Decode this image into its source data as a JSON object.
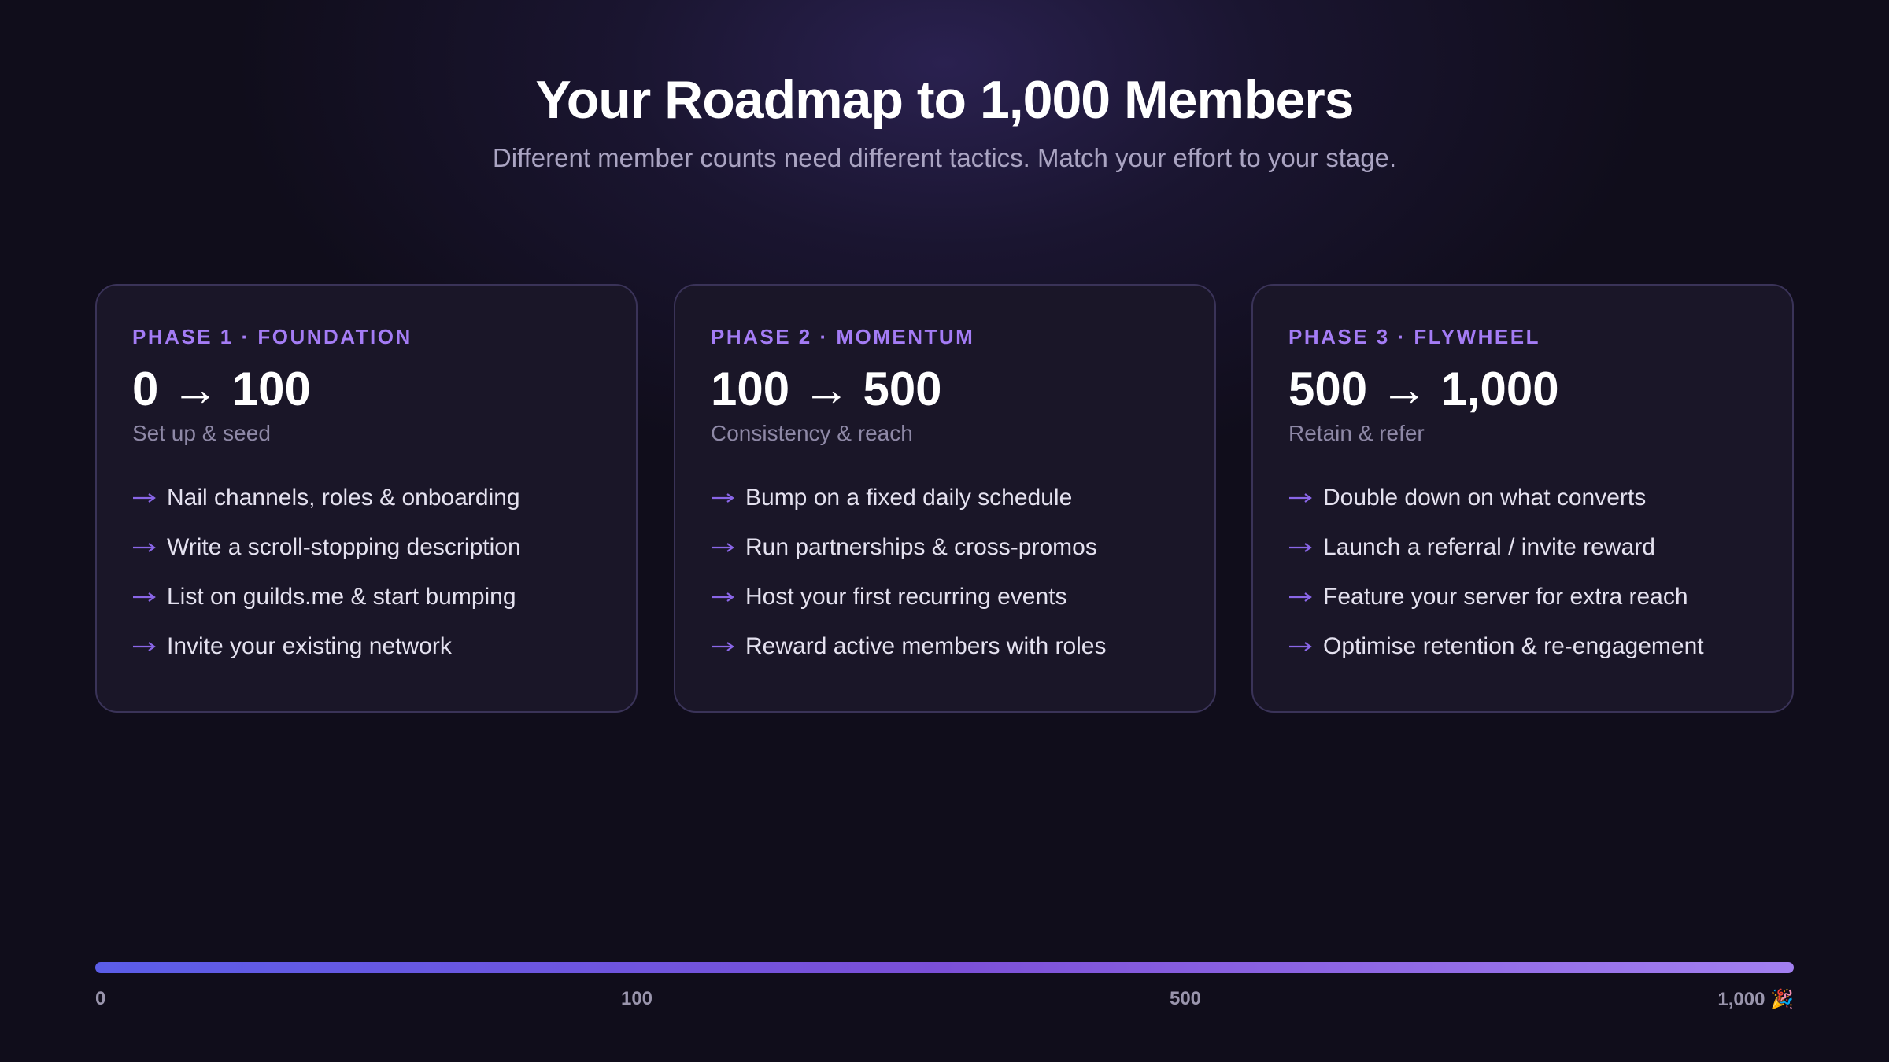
{
  "header": {
    "title": "Your Roadmap to 1,000 Members",
    "subtitle": "Different member counts need different tactics. Match your effort to your stage."
  },
  "phases": [
    {
      "label": "PHASE 1 · FOUNDATION",
      "range": "0 → 100",
      "tagline": "Set up & seed",
      "items": [
        "Nail channels, roles & onboarding",
        "Write a scroll-stopping description",
        "List on guilds.me & start bumping",
        "Invite your existing network"
      ]
    },
    {
      "label": "PHASE 2 · MOMENTUM",
      "range": "100 → 500",
      "tagline": "Consistency & reach",
      "items": [
        "Bump on a fixed daily schedule",
        "Run partnerships & cross-promos",
        "Host your first recurring events",
        "Reward active members with roles"
      ]
    },
    {
      "label": "PHASE 3 · FLYWHEEL",
      "range": "500 → 1,000",
      "tagline": "Retain & refer",
      "items": [
        "Double down on what converts",
        "Launch a referral / invite reward",
        "Feature your server for extra reach",
        "Optimise retention & re-engagement"
      ]
    }
  ],
  "progress": {
    "ticks": [
      "0",
      "100",
      "500",
      "1,000 🎉"
    ]
  }
}
